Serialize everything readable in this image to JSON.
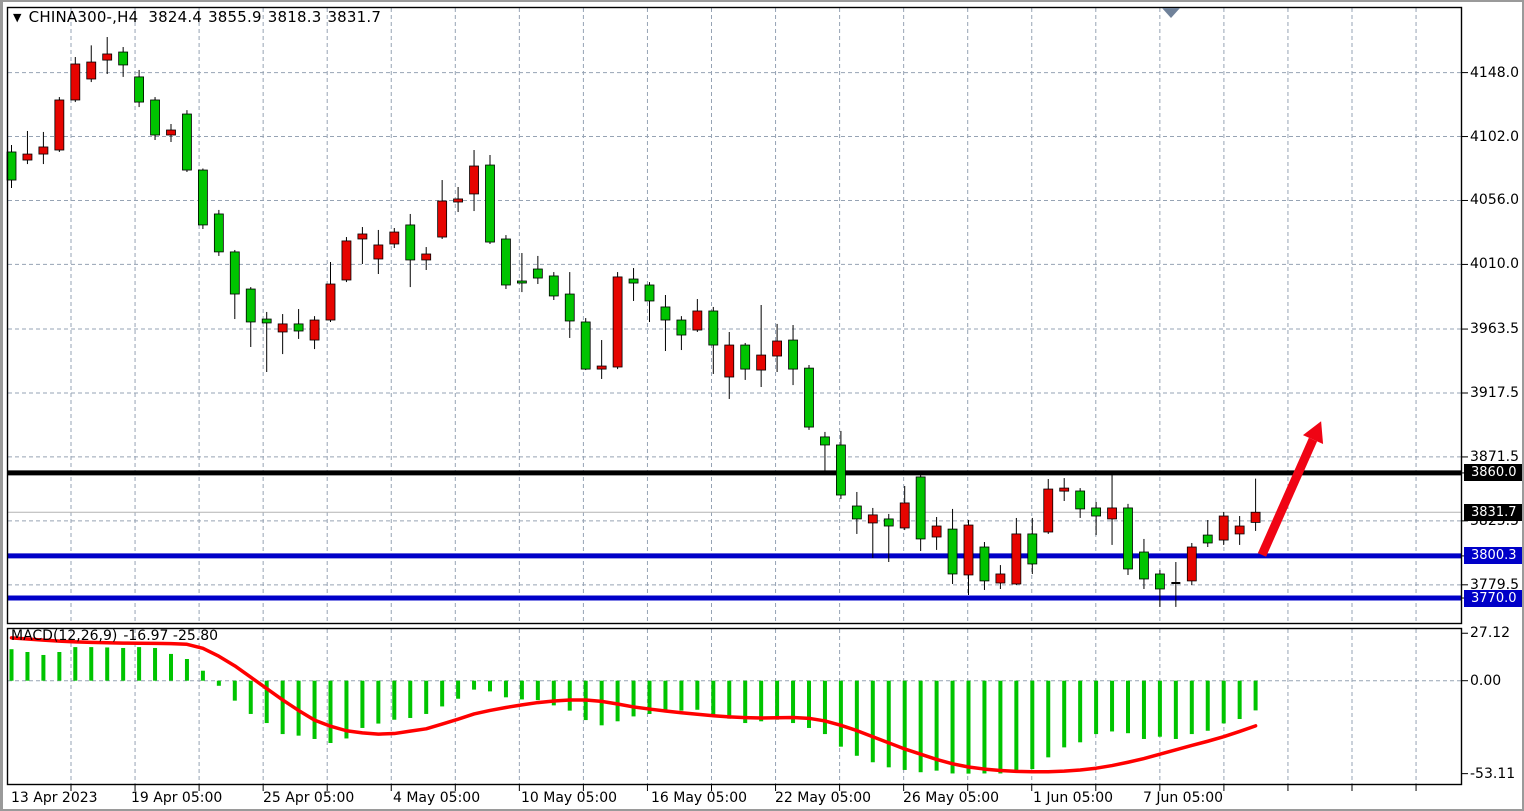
{
  "window": {
    "app_context": "trading chart window",
    "background": "#ffffff",
    "frame_color": "#9a9a9a"
  },
  "title_bar": {
    "dropdown_icon": "▼",
    "symbol": "CHINA300-,H4",
    "open": "3824.4",
    "high": "3855.9",
    "low": "3818.3",
    "close": "3831.7"
  },
  "scroll_marker": {
    "icon": "triangle-down",
    "color": "#70829a"
  },
  "price_axis": {
    "labels": [
      "4148.0",
      "4102.0",
      "4056.0",
      "4010.0",
      "3963.5",
      "3917.5",
      "3871.5",
      "3825.5",
      "3779.5"
    ],
    "values": [
      4148.0,
      4102.0,
      4056.0,
      4010.0,
      3963.5,
      3917.5,
      3871.5,
      3825.5,
      3779.5
    ]
  },
  "time_axis": {
    "labels": [
      "13 Apr 2023",
      "19 Apr 05:00",
      "25 Apr 05:00",
      "4 May 05:00",
      "10 May 05:00",
      "16 May 05:00",
      "22 May 05:00",
      "26 May 05:00",
      "1 Jun 05:00",
      "7 Jun 05:00"
    ]
  },
  "levels": [
    {
      "label": "3860.0",
      "value": 3860.0,
      "color": "#000000",
      "role": "resistance"
    },
    {
      "label": "3800.3",
      "value": 3800.3,
      "color": "#0000c8",
      "role": "support"
    },
    {
      "label": "3770.0",
      "value": 3770.0,
      "color": "#0000c8",
      "role": "support"
    }
  ],
  "bid": {
    "label": "3831.7",
    "value": 3831.7,
    "badge_color": "#000000"
  },
  "indicator": {
    "name": "MACD(12,26,9)",
    "values_text": "-16.97 -25.80",
    "macd_value": -16.97,
    "signal_value": -25.8,
    "axis_labels": [
      "27.12",
      "0.00",
      "-53.11"
    ],
    "axis_values": [
      27.12,
      0.0,
      -53.11
    ]
  },
  "colors": {
    "bull_candle": "#e60400",
    "bear_candle": "#00c400",
    "candle_outline": "#000000",
    "signal_line": "#ff0000",
    "histogram": "#00c400",
    "grid": "#96a3b4",
    "bid_line": "#b4b4b4",
    "arrow": "#f00414",
    "badge_text": "#ffffff",
    "axis_text": "#000000"
  },
  "annotation_arrow": {
    "from_bar": 78.4,
    "from_price": 3801,
    "to_bar": 81.6,
    "to_price": 3884,
    "color": "#f00414"
  },
  "chart_data": [
    {
      "type": "candlestick",
      "title": "CHINA300-,H4",
      "timeframe": "H4",
      "color_convention": "red = bullish, green = bearish",
      "ylim": [
        3750,
        4180
      ],
      "yticks": [
        4148.0,
        4102.0,
        4056.0,
        4010.0,
        3963.5,
        3917.5,
        3871.5,
        3825.5,
        3779.5
      ],
      "hlines": [
        3860.0,
        3800.3,
        3770.0
      ],
      "bid_price": 3831.7,
      "last_ohlc": {
        "open": 3824.4,
        "high": 3855.9,
        "low": 3818.3,
        "close": 3831.7
      },
      "candles_ohlc": [
        [
          4090.9,
          4095.9,
          4065.0,
          4070.7
        ],
        [
          4085.1,
          4106.0,
          4082.2,
          4089.4
        ],
        [
          4089.4,
          4105.3,
          4082.2,
          4094.5
        ],
        [
          4092.3,
          4130.4,
          4090.9,
          4128.3
        ],
        [
          4128.3,
          4159.2,
          4126.8,
          4154.2
        ],
        [
          4143.4,
          4167.6,
          4141.2,
          4155.6
        ],
        [
          4157.0,
          4173.6,
          4147.0,
          4161.4
        ],
        [
          4162.8,
          4166.4,
          4144.9,
          4153.5
        ],
        [
          4144.9,
          4149.9,
          4123.2,
          4126.8
        ],
        [
          4128.3,
          4130.4,
          4099.5,
          4103.1
        ],
        [
          4103.1,
          4111.0,
          4098.1,
          4106.7
        ],
        [
          4118.2,
          4121.0,
          4076.5,
          4077.9
        ],
        [
          4077.9,
          4079.0,
          4035.5,
          4038.4
        ],
        [
          4046.3,
          4049.2,
          4016.1,
          4019.0
        ],
        [
          4019.0,
          4020.4,
          3970.7,
          3988.7
        ],
        [
          3992.3,
          3993.7,
          3950.6,
          3968.6
        ],
        [
          3970.7,
          3975.8,
          3932.6,
          3967.9
        ],
        [
          3961.4,
          3974.3,
          3945.5,
          3967.2
        ],
        [
          3967.2,
          3977.9,
          3956.4,
          3962.1
        ],
        [
          3955.6,
          3972.8,
          3949.1,
          3970.0
        ],
        [
          3970.0,
          4011.7,
          3968.6,
          3995.9
        ],
        [
          3998.8,
          4029.7,
          3997.3,
          4026.9
        ],
        [
          4028.3,
          4036.9,
          4010.3,
          4031.9
        ],
        [
          4013.9,
          4034.8,
          4003.1,
          4024.0
        ],
        [
          4024.7,
          4036.2,
          4021.8,
          4033.3
        ],
        [
          4038.4,
          4046.3,
          3993.7,
          4013.2
        ],
        [
          4013.2,
          4022.5,
          4006.0,
          4017.5
        ],
        [
          4029.7,
          4070.7,
          4028.3,
          4055.6
        ],
        [
          4054.9,
          4065.7,
          4047.7,
          4057.1
        ],
        [
          4060.7,
          4092.3,
          4048.4,
          4080.8
        ],
        [
          4081.5,
          4088.7,
          4024.7,
          4026.1
        ],
        [
          4028.3,
          4031.1,
          3992.3,
          3995.2
        ],
        [
          3998.1,
          4018.2,
          3990.1,
          3996.6
        ],
        [
          4006.7,
          4016.1,
          3995.9,
          4000.2
        ],
        [
          4001.7,
          4004.5,
          3984.4,
          3987.3
        ],
        [
          3988.7,
          4004.5,
          3957.1,
          3969.3
        ],
        [
          3968.6,
          3971.4,
          3934.0,
          3934.7
        ],
        [
          3934.7,
          3955.6,
          3927.6,
          3936.9
        ],
        [
          3936.2,
          4004.5,
          3934.7,
          4001.0
        ],
        [
          3999.5,
          4007.4,
          3983.7,
          3996.6
        ],
        [
          3995.2,
          3997.3,
          3968.6,
          3983.7
        ],
        [
          3979.4,
          3988.0,
          3947.7,
          3970.0
        ],
        [
          3970.0,
          3972.8,
          3948.4,
          3959.2
        ],
        [
          3962.8,
          3985.1,
          3961.4,
          3976.5
        ],
        [
          3976.5,
          3979.4,
          3931.2,
          3952.0
        ],
        [
          3929.0,
          3961.4,
          3913.2,
          3952.0
        ],
        [
          3952.0,
          3953.5,
          3926.9,
          3934.7
        ],
        [
          3934.0,
          3980.8,
          3921.8,
          3944.8
        ],
        [
          3944.1,
          3967.2,
          3932.6,
          3954.9
        ],
        [
          3955.6,
          3966.4,
          3923.2,
          3934.7
        ],
        [
          3935.4,
          3937.6,
          3891.0,
          3893.0
        ],
        [
          3885.9,
          3889.5,
          3858.5,
          3880.1
        ],
        [
          3880.1,
          3890.2,
          3841.2,
          3844.1
        ],
        [
          3836.2,
          3846.3,
          3816.1,
          3826.9
        ],
        [
          3824.0,
          3834.8,
          3798.8,
          3829.8
        ],
        [
          3826.9,
          3830.5,
          3795.9,
          3821.8
        ],
        [
          3820.4,
          3850.6,
          3818.9,
          3838.4
        ],
        [
          3857.1,
          3858.5,
          3803.8,
          3812.5
        ],
        [
          3813.9,
          3828.3,
          3804.6,
          3821.8
        ],
        [
          3819.6,
          3834.1,
          3780.1,
          3787.3
        ],
        [
          3786.6,
          3826.1,
          3772.2,
          3822.5
        ],
        [
          3806.7,
          3810.3,
          3775.8,
          3782.3
        ],
        [
          3780.8,
          3793.7,
          3776.5,
          3787.3
        ],
        [
          3780.1,
          3827.6,
          3779.4,
          3816.1
        ],
        [
          3816.1,
          3827.6,
          3787.3,
          3794.5
        ],
        [
          3817.5,
          3855.6,
          3816.1,
          3848.4
        ],
        [
          3846.9,
          3856.3,
          3839.8,
          3849.1
        ],
        [
          3847.0,
          3849.1,
          3827.6,
          3834.1
        ],
        [
          3834.8,
          3839.1,
          3815.3,
          3829.0
        ],
        [
          3826.9,
          3858.5,
          3808.2,
          3834.8
        ],
        [
          3834.8,
          3837.7,
          3786.6,
          3790.9
        ],
        [
          3803.1,
          3812.5,
          3776.5,
          3783.7
        ],
        [
          3787.3,
          3790.2,
          3763.6,
          3776.5
        ],
        [
          3780.8,
          3795.9,
          3763.6,
          3780.8
        ],
        [
          3782.3,
          3809.6,
          3779.4,
          3806.7
        ],
        [
          3815.3,
          3826.1,
          3806.7,
          3809.6
        ],
        [
          3811.7,
          3831.9,
          3808.2,
          3829.0
        ],
        [
          3816.1,
          3829.0,
          3808.2,
          3821.8
        ],
        [
          3824.4,
          3855.9,
          3818.3,
          3831.7
        ]
      ]
    },
    {
      "type": "macd",
      "title": "MACD(12,26,9)",
      "legend": "green histogram = MACD, red line = signal",
      "ylim": [
        -60,
        30
      ],
      "yticks": [
        27.12,
        0.0,
        -53.11
      ],
      "histogram": [
        18.0,
        16.4,
        14.7,
        16.4,
        19.2,
        19.2,
        19.0,
        18.7,
        19.2,
        18.7,
        15.3,
        12.4,
        5.7,
        -2.9,
        -11.4,
        -19.0,
        -24.2,
        -30.5,
        -31.4,
        -33.3,
        -35.6,
        -33.0,
        -27.0,
        -24.5,
        -22.3,
        -21.3,
        -19.0,
        -14.7,
        -10.3,
        -5.1,
        -6.1,
        -9.5,
        -10.7,
        -11.1,
        -14.1,
        -17.1,
        -22.5,
        -25.5,
        -23.2,
        -20.4,
        -19.0,
        -17.9,
        -17.1,
        -16.6,
        -19.5,
        -21.7,
        -24.2,
        -23.2,
        -22.3,
        -24.2,
        -27.0,
        -30.5,
        -37.7,
        -42.9,
        -46.6,
        -49.5,
        -51.0,
        -52.3,
        -51.4,
        -53.0,
        -53.1,
        -53.0,
        -53.0,
        -51.4,
        -50.5,
        -43.8,
        -38.1,
        -35.2,
        -30.5,
        -29.0,
        -30.0,
        -33.3,
        -32.0,
        -33.3,
        -30.5,
        -28.6,
        -24.4,
        -21.9,
        -16.97
      ],
      "signal": [
        24.5,
        23.8,
        23.2,
        22.6,
        22.2,
        21.9,
        21.7,
        21.5,
        21.4,
        21.3,
        21.2,
        20.8,
        18.5,
        14.0,
        8.5,
        2.0,
        -4.5,
        -11.0,
        -17.0,
        -22.5,
        -26.0,
        -28.6,
        -29.8,
        -30.5,
        -30.2,
        -28.8,
        -27.5,
        -24.8,
        -22.0,
        -19.0,
        -17.0,
        -15.3,
        -13.8,
        -12.5,
        -11.6,
        -11.0,
        -11.0,
        -11.8,
        -13.3,
        -15.0,
        -16.2,
        -17.3,
        -18.3,
        -19.2,
        -20.0,
        -20.7,
        -21.1,
        -21.3,
        -21.2,
        -21.0,
        -21.5,
        -23.0,
        -25.5,
        -28.5,
        -32.0,
        -35.5,
        -39.0,
        -42.0,
        -45.0,
        -47.5,
        -49.3,
        -50.5,
        -51.3,
        -51.8,
        -52.0,
        -52.0,
        -51.7,
        -51.0,
        -50.0,
        -48.5,
        -46.6,
        -44.5,
        -42.0,
        -39.5,
        -37.0,
        -34.6,
        -32.0,
        -29.0,
        -25.8
      ]
    }
  ]
}
